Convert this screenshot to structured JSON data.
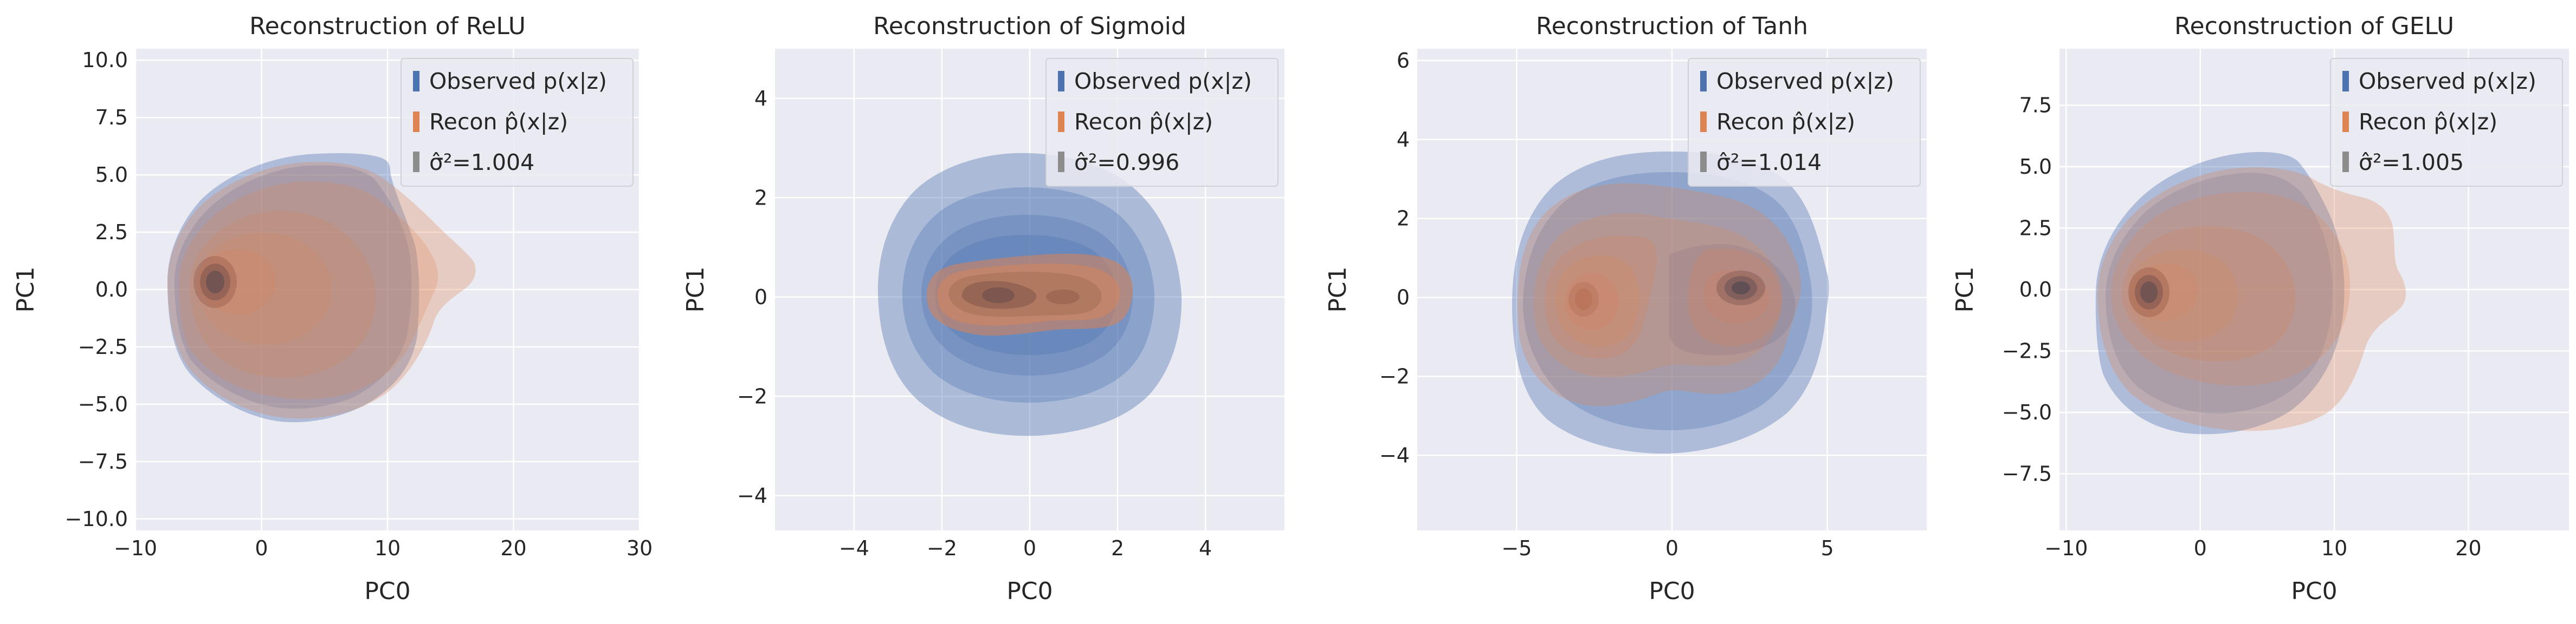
{
  "figure": {
    "background": "#ffffff",
    "panel_background": "#eaeaf2",
    "grid_color": "#ffffff",
    "observed_color": "#4c72b0",
    "recon_color": "#dd8452",
    "legend_sigma_color": "#8c8c8c"
  },
  "chart_data": [
    {
      "type": "density_contour",
      "title": "Reconstruction of ReLU",
      "xlabel": "PC0",
      "ylabel": "PC1",
      "xlim": [
        -10,
        30
      ],
      "ylim": [
        -10.5,
        10.5
      ],
      "xticks": [
        -10,
        0,
        10,
        20,
        30
      ],
      "yticks": [
        -10.0,
        -7.5,
        -5.0,
        -2.5,
        0.0,
        2.5,
        5.0,
        7.5,
        10.0
      ],
      "xtick_labels": [
        "−10",
        "0",
        "10",
        "20",
        "30"
      ],
      "ytick_labels": [
        "−10.0",
        "−7.5",
        "−5.0",
        "−2.5",
        "0.0",
        "2.5",
        "5.0",
        "7.5",
        "10.0"
      ],
      "grid": true,
      "legend_position": "upper right",
      "legend": [
        "Observed p(x|z)",
        "Recon p̂(x|z)",
        "σ̂²=1.004"
      ],
      "sigma_hat_squared": 1.004,
      "series": [
        {
          "name": "Observed p(x|z)",
          "outer_x_range": [
            -7.8,
            12.5
          ],
          "outer_y_range": [
            -5.5,
            6.0
          ],
          "mode": [
            -4.0,
            0.0
          ]
        },
        {
          "name": "Recon p̂(x|z)",
          "outer_x_range": [
            -7.8,
            16.5
          ],
          "outer_y_range": [
            -5.2,
            5.5
          ],
          "mode": [
            -4.0,
            0.0
          ]
        }
      ]
    },
    {
      "type": "density_contour",
      "title": "Reconstruction of Sigmoid",
      "xlabel": "PC0",
      "ylabel": "PC1",
      "xlim": [
        -5.8,
        5.8
      ],
      "ylim": [
        -4.7,
        5.0
      ],
      "xticks": [
        -4,
        -2,
        0,
        2,
        4
      ],
      "yticks": [
        -4,
        -2,
        0,
        2,
        4
      ],
      "xtick_labels": [
        "−4",
        "−2",
        "0",
        "2",
        "4"
      ],
      "ytick_labels": [
        "−4",
        "−2",
        "0",
        "2",
        "4"
      ],
      "grid": true,
      "legend_position": "upper right",
      "legend": [
        "Observed p(x|z)",
        "Recon p̂(x|z)",
        "σ̂²=0.996"
      ],
      "sigma_hat_squared": 0.996,
      "series": [
        {
          "name": "Observed p(x|z)",
          "outer_x_range": [
            -3.3,
            3.4
          ],
          "outer_y_range": [
            -2.8,
            2.8
          ],
          "mode": [
            -0.6,
            0.0
          ]
        },
        {
          "name": "Recon p̂(x|z)",
          "outer_x_range": [
            -2.2,
            2.3
          ],
          "outer_y_range": [
            -0.9,
            1.0
          ],
          "mode": [
            -0.6,
            0.0
          ]
        }
      ]
    },
    {
      "type": "density_contour",
      "title": "Reconstruction of Tanh",
      "xlabel": "PC0",
      "ylabel": "PC1",
      "xlim": [
        -8.2,
        8.2
      ],
      "ylim": [
        -5.9,
        6.3
      ],
      "xticks": [
        -5,
        0,
        5
      ],
      "yticks": [
        -4,
        -2,
        0,
        2,
        4,
        6
      ],
      "xtick_labels": [
        "−5",
        "0",
        "5"
      ],
      "ytick_labels": [
        "−4",
        "−2",
        "0",
        "2",
        "4",
        "6"
      ],
      "grid": true,
      "legend_position": "upper right",
      "legend": [
        "Observed p(x|z)",
        "Recon p̂(x|z)",
        "σ̂²=1.014"
      ],
      "sigma_hat_squared": 1.014,
      "series": [
        {
          "name": "Observed p(x|z)",
          "outer_x_range": [
            -5.0,
            5.0
          ],
          "outer_y_range": [
            -3.9,
            3.6
          ],
          "modes": [
            [
              -2.3,
              0.0
            ],
            [
              2.3,
              0.2
            ]
          ]
        },
        {
          "name": "Recon p̂(x|z)",
          "outer_x_range": [
            -4.8,
            4.3
          ],
          "outer_y_range": [
            -3.2,
            3.2
          ],
          "modes": [
            [
              -2.3,
              0.0
            ],
            [
              2.3,
              0.2
            ]
          ]
        }
      ]
    },
    {
      "type": "density_contour",
      "title": "Reconstruction of GELU",
      "xlabel": "PC0",
      "ylabel": "PC1",
      "xlim": [
        -10.5,
        27.5
      ],
      "ylim": [
        -9.8,
        9.8
      ],
      "xticks": [
        -10,
        0,
        10,
        20
      ],
      "yticks": [
        -7.5,
        -5.0,
        -2.5,
        0.0,
        2.5,
        5.0,
        7.5
      ],
      "xtick_labels": [
        "−10",
        "0",
        "10",
        "20"
      ],
      "ytick_labels": [
        "−7.5",
        "−5.0",
        "−2.5",
        "0.0",
        "2.5",
        "5.0",
        "7.5"
      ],
      "grid": true,
      "legend_position": "upper right",
      "legend": [
        "Observed p(x|z)",
        "Recon p̂(x|z)",
        "σ̂²=1.005"
      ],
      "sigma_hat_squared": 1.005,
      "series": [
        {
          "name": "Observed p(x|z)",
          "outer_x_range": [
            -8.2,
            12.5
          ],
          "outer_y_range": [
            -5.5,
            6.0
          ],
          "mode": [
            -3.7,
            0.0
          ]
        },
        {
          "name": "Recon p̂(x|z)",
          "outer_x_range": [
            -7.8,
            15.0
          ],
          "outer_y_range": [
            -5.3,
            5.5
          ],
          "mode": [
            -3.7,
            0.0
          ]
        }
      ]
    }
  ]
}
